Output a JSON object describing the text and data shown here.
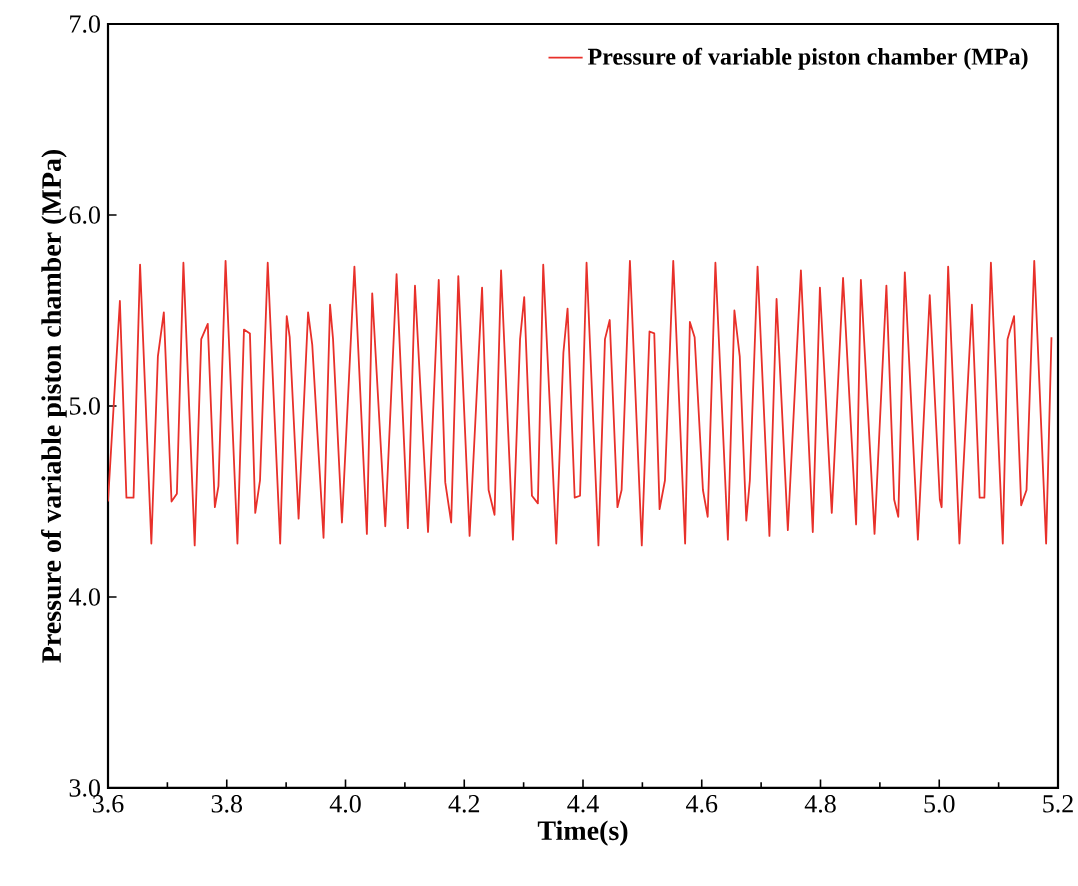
{
  "chart_data": {
    "type": "line",
    "xlabel": "Time(s)",
    "ylabel": "Pressure of variable piston chamber (MPa)",
    "xlim": [
      3.6,
      5.2
    ],
    "ylim": [
      3.0,
      7.0
    ],
    "xticks": [
      {
        "value": 3.6,
        "label": "3.6"
      },
      {
        "value": 3.8,
        "label": "3.8"
      },
      {
        "value": 4.0,
        "label": "4.0"
      },
      {
        "value": 4.2,
        "label": "4.2"
      },
      {
        "value": 4.4,
        "label": "4.4"
      },
      {
        "value": 4.6,
        "label": "4.6"
      },
      {
        "value": 4.8,
        "label": "4.8"
      },
      {
        "value": 5.0,
        "label": "5.0"
      },
      {
        "value": 5.2,
        "label": "5.2"
      }
    ],
    "yticks": [
      {
        "value": 3.0,
        "label": "3.0"
      },
      {
        "value": 4.0,
        "label": "4.0"
      },
      {
        "value": 5.0,
        "label": "5.0"
      },
      {
        "value": 6.0,
        "label": "6.0"
      },
      {
        "value": 7.0,
        "label": "7.0"
      }
    ],
    "legend": "top right",
    "grid": false,
    "marker": "none",
    "line_style": "solid",
    "series": [
      {
        "name": "Pressure of variable piston chamber (MPa)",
        "color": "#e8302a",
        "x": [
          3.6,
          3.62,
          3.631,
          3.643,
          3.654,
          3.673,
          3.684,
          3.694,
          3.707,
          3.716,
          3.727,
          3.746,
          3.757,
          3.768,
          3.78,
          3.786,
          3.798,
          3.818,
          3.829,
          3.839,
          3.848,
          3.856,
          3.869,
          3.89,
          3.901,
          3.906,
          3.921,
          3.937,
          3.944,
          3.963,
          3.974,
          3.979,
          3.994,
          4.015,
          4.036,
          4.045,
          4.067,
          4.086,
          4.105,
          4.117,
          4.139,
          4.157,
          4.168,
          4.178,
          4.19,
          4.209,
          4.23,
          4.241,
          4.251,
          4.262,
          4.282,
          4.294,
          4.301,
          4.314,
          4.324,
          4.333,
          4.355,
          4.367,
          4.374,
          4.386,
          4.395,
          4.406,
          4.426,
          4.437,
          4.445,
          4.458,
          4.465,
          4.479,
          4.499,
          4.512,
          4.52,
          4.529,
          4.538,
          4.552,
          4.572,
          4.58,
          4.588,
          4.602,
          4.61,
          4.623,
          4.644,
          4.655,
          4.664,
          4.675,
          4.681,
          4.694,
          4.714,
          4.726,
          4.745,
          4.767,
          4.787,
          4.799,
          4.819,
          4.838,
          4.86,
          4.868,
          4.891,
          4.911,
          4.924,
          4.931,
          4.942,
          4.964,
          4.984,
          5.001,
          5.004,
          5.015,
          5.034,
          5.055,
          5.068,
          5.076,
          5.087,
          5.107,
          5.115,
          5.126,
          5.138,
          5.147,
          5.16,
          5.18,
          5.189
        ],
        "values": [
          4.5,
          5.55,
          4.52,
          4.52,
          5.74,
          4.28,
          5.26,
          5.49,
          4.5,
          4.54,
          5.75,
          4.27,
          5.35,
          5.43,
          4.47,
          4.58,
          5.76,
          4.28,
          5.4,
          5.38,
          4.44,
          4.61,
          5.75,
          4.28,
          5.47,
          5.36,
          4.41,
          5.49,
          5.32,
          4.31,
          5.53,
          5.35,
          4.39,
          5.73,
          4.33,
          5.59,
          4.37,
          5.69,
          4.36,
          5.63,
          4.34,
          5.66,
          4.6,
          4.39,
          5.68,
          4.32,
          5.62,
          4.56,
          4.43,
          5.71,
          4.3,
          5.35,
          5.57,
          4.53,
          4.49,
          5.74,
          4.28,
          5.28,
          5.51,
          4.52,
          4.53,
          5.75,
          4.27,
          5.35,
          5.45,
          4.47,
          4.56,
          5.76,
          4.27,
          5.39,
          5.38,
          4.46,
          4.61,
          5.76,
          4.28,
          5.44,
          5.36,
          4.56,
          4.42,
          5.75,
          4.3,
          5.5,
          5.26,
          4.4,
          4.61,
          5.73,
          4.32,
          5.56,
          4.35,
          5.71,
          4.34,
          5.62,
          4.44,
          5.67,
          4.38,
          5.66,
          4.33,
          5.63,
          4.51,
          4.42,
          5.7,
          4.3,
          5.58,
          4.51,
          4.47,
          5.73,
          4.28,
          5.53,
          4.52,
          4.52,
          5.75,
          4.28,
          5.35,
          5.47,
          4.48,
          4.56,
          5.76,
          4.28,
          5.36
        ]
      }
    ]
  }
}
